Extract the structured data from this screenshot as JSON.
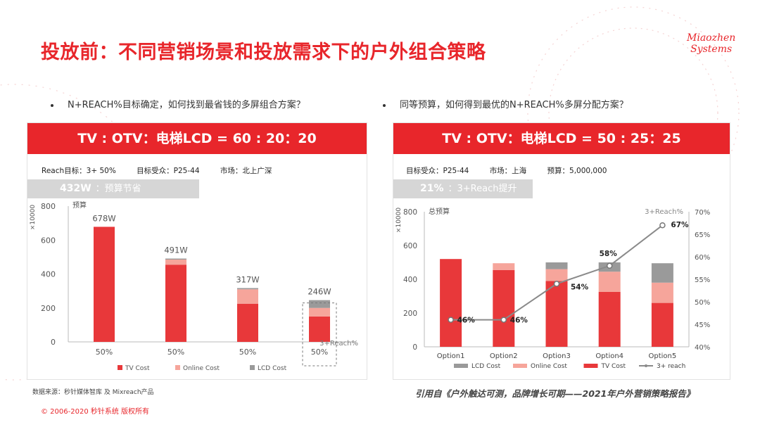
{
  "title": "投放前：不同营销场景和投放需求下的户外组合策略",
  "logo": {
    "line1": "Miaozhen",
    "line2": "Systems",
    "mark": "®"
  },
  "left": {
    "question": "N+REACH%目标确定，如何找到最省钱的多屏组合方案？",
    "banner": "TV : OTV：电梯LCD = 60 : 20：20",
    "meta": [
      "Reach目标：3+ 50%",
      "目标受众：P25-44",
      "市场：北上广深"
    ],
    "highlight_value": "432W",
    "highlight_label": "：预算节省"
  },
  "right": {
    "question": "同等预算，如何得到最优的N+REACH%多屏分配方案？",
    "banner": "TV : OTV：电梯LCD = 50 : 25：25",
    "meta": [
      "目标受众：P25-44",
      "市场：上海",
      "预算：5,000,000"
    ],
    "highlight_value": "21%",
    "highlight_label": "：3+Reach提升"
  },
  "colors": {
    "tv": "#e8383a",
    "online": "#f6a59b",
    "lcd": "#9a9a9a",
    "reach": "#8a8a8a",
    "brand": "#e8262b"
  },
  "chart_data": [
    {
      "type": "bar",
      "stacked": true,
      "y_unit": "×10000",
      "ylabel": "预算",
      "ylim": [
        0,
        800
      ],
      "yticks": [
        0,
        200,
        400,
        600,
        800
      ],
      "categories": [
        "50%",
        "50%",
        "50%",
        "50%"
      ],
      "total_labels": [
        "678W",
        "491W",
        "317W",
        "246W"
      ],
      "series": [
        {
          "name": "TV Cost",
          "color": "#e8383a",
          "values": [
            678,
            455,
            225,
            150
          ]
        },
        {
          "name": "Online Cost",
          "color": "#f6a59b",
          "values": [
            0,
            30,
            85,
            50
          ]
        },
        {
          "name": "LCD Cost",
          "color": "#9a9a9a",
          "values": [
            0,
            6,
            7,
            46
          ]
        }
      ],
      "annotation": "3+Reach%",
      "highlight_index": 3,
      "legend": "bottom"
    },
    {
      "type": "bar",
      "stacked": true,
      "y_unit": "×10000",
      "ylabel": "总预算",
      "ylim": [
        0,
        800
      ],
      "yticks": [
        0,
        200,
        400,
        600,
        800
      ],
      "y2label": "3+Reach%",
      "y2lim": [
        40,
        70
      ],
      "y2ticks": [
        "40%",
        "45%",
        "50%",
        "55%",
        "60%",
        "65%",
        "70%"
      ],
      "categories": [
        "Option1",
        "Option2",
        "Option3",
        "Option4",
        "Option5"
      ],
      "series": [
        {
          "name": "LCD Cost",
          "color": "#9a9a9a",
          "values": [
            0,
            0,
            40,
            55,
            115
          ]
        },
        {
          "name": "Online Cost",
          "color": "#f6a59b",
          "values": [
            0,
            40,
            70,
            120,
            120
          ]
        },
        {
          "name": "TV Cost",
          "color": "#e8383a",
          "values": [
            520,
            455,
            390,
            325,
            260
          ]
        }
      ],
      "line": {
        "name": "3+ reach",
        "color": "#8a8a8a",
        "values": [
          46,
          46,
          54,
          58,
          67
        ],
        "labels": [
          "46%",
          "46%",
          "54%",
          "58%",
          "67%"
        ]
      },
      "legend": "bottom"
    }
  ],
  "source": "数据来源：秒针媒体智库 及 Mixreach产品",
  "copyright": "© 2006-2020 秒针系统 版权所有",
  "citation": "引用自《户外触达可测，品牌增长可期——2021年户外营销策略报告》"
}
